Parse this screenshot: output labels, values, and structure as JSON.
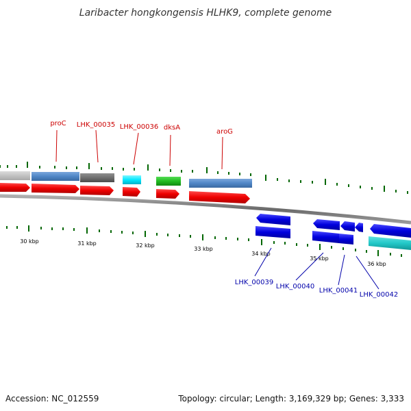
{
  "title": "Laribacter hongkongensis HLHK9, complete genome",
  "footer": {
    "accession": "Accession: NC_012559",
    "summary": "Topology: circular; Length: 3,169,329 bp; Genes: 3,333"
  },
  "gene_labels_top": [
    "proC",
    "LHK_00035",
    "LHK_00036",
    "dksA",
    "aroG"
  ],
  "gene_labels_bottom": [
    "LHK_00039",
    "LHK_00040",
    "LHK_00041",
    "LHK_00042"
  ],
  "scale_labels": [
    "30 kbp",
    "31 kbp",
    "32 kbp",
    "33 kbp",
    "34 kbp",
    "35 kbp",
    "36 kbp"
  ],
  "colors": {
    "cds_red": "#ee0000",
    "feature_blue": "#0000dd",
    "feature_steelblue": "#4f86c6",
    "feature_gray": "#6f6f6f",
    "feature_lightgray": "#c8c8c8",
    "feature_cyan": "#00e8ff",
    "feature_green": "#22bb22",
    "feature_teal": "#22c8c8",
    "tick_green": "#006600",
    "label_red": "#cc0000",
    "label_blue": "#0000aa"
  }
}
